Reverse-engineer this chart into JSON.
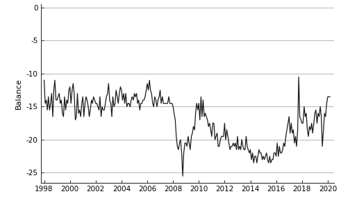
{
  "title": "",
  "ylabel": "Balance",
  "xlim_start": 1997.75,
  "xlim_end": 2020.5,
  "ylim_bottom": -26.5,
  "ylim_top": 0.5,
  "yticks": [
    0,
    -5,
    -10,
    -15,
    -20,
    -25
  ],
  "xticks": [
    1998,
    2000,
    2002,
    2004,
    2006,
    2008,
    2010,
    2012,
    2014,
    2016,
    2018,
    2020
  ],
  "line_color": "#1a1a1a",
  "line_width": 0.9,
  "background_color": "#ffffff",
  "grid_color": "#aaaaaa",
  "series": [
    [
      1998.0,
      -11.0
    ],
    [
      1998.08,
      -14.5
    ],
    [
      1998.17,
      -14.0
    ],
    [
      1998.25,
      -15.5
    ],
    [
      1998.33,
      -13.5
    ],
    [
      1998.42,
      -15.5
    ],
    [
      1998.5,
      -14.5
    ],
    [
      1998.58,
      -13.0
    ],
    [
      1998.67,
      -16.5
    ],
    [
      1998.75,
      -12.5
    ],
    [
      1998.83,
      -11.0
    ],
    [
      1998.92,
      -14.0
    ],
    [
      1999.0,
      -14.0
    ],
    [
      1999.08,
      -13.5
    ],
    [
      1999.17,
      -13.0
    ],
    [
      1999.25,
      -14.5
    ],
    [
      1999.33,
      -14.0
    ],
    [
      1999.42,
      -16.0
    ],
    [
      1999.5,
      -16.5
    ],
    [
      1999.58,
      -13.5
    ],
    [
      1999.67,
      -15.5
    ],
    [
      1999.75,
      -14.0
    ],
    [
      1999.83,
      -14.5
    ],
    [
      1999.92,
      -12.5
    ],
    [
      2000.0,
      -12.0
    ],
    [
      2000.08,
      -14.5
    ],
    [
      2000.17,
      -12.5
    ],
    [
      2000.25,
      -11.5
    ],
    [
      2000.33,
      -13.0
    ],
    [
      2000.42,
      -17.0
    ],
    [
      2000.5,
      -16.5
    ],
    [
      2000.58,
      -13.0
    ],
    [
      2000.67,
      -16.0
    ],
    [
      2000.75,
      -15.5
    ],
    [
      2000.83,
      -16.5
    ],
    [
      2000.92,
      -14.5
    ],
    [
      2001.0,
      -13.5
    ],
    [
      2001.08,
      -16.5
    ],
    [
      2001.17,
      -14.5
    ],
    [
      2001.25,
      -13.5
    ],
    [
      2001.33,
      -14.0
    ],
    [
      2001.42,
      -15.0
    ],
    [
      2001.5,
      -16.5
    ],
    [
      2001.58,
      -15.5
    ],
    [
      2001.67,
      -14.0
    ],
    [
      2001.75,
      -14.5
    ],
    [
      2001.83,
      -13.5
    ],
    [
      2001.92,
      -14.0
    ],
    [
      2002.0,
      -14.5
    ],
    [
      2002.08,
      -14.5
    ],
    [
      2002.17,
      -15.0
    ],
    [
      2002.25,
      -15.5
    ],
    [
      2002.33,
      -13.5
    ],
    [
      2002.42,
      -16.5
    ],
    [
      2002.5,
      -15.0
    ],
    [
      2002.58,
      -15.5
    ],
    [
      2002.67,
      -15.5
    ],
    [
      2002.75,
      -14.5
    ],
    [
      2002.83,
      -13.5
    ],
    [
      2002.92,
      -13.0
    ],
    [
      2003.0,
      -11.5
    ],
    [
      2003.08,
      -14.0
    ],
    [
      2003.17,
      -14.5
    ],
    [
      2003.25,
      -16.5
    ],
    [
      2003.33,
      -13.5
    ],
    [
      2003.42,
      -15.0
    ],
    [
      2003.5,
      -14.5
    ],
    [
      2003.58,
      -12.5
    ],
    [
      2003.67,
      -13.5
    ],
    [
      2003.75,
      -14.5
    ],
    [
      2003.83,
      -13.0
    ],
    [
      2003.92,
      -12.0
    ],
    [
      2004.0,
      -12.5
    ],
    [
      2004.08,
      -14.0
    ],
    [
      2004.17,
      -13.0
    ],
    [
      2004.25,
      -14.5
    ],
    [
      2004.33,
      -13.0
    ],
    [
      2004.42,
      -15.0
    ],
    [
      2004.5,
      -14.5
    ],
    [
      2004.58,
      -14.5
    ],
    [
      2004.67,
      -15.0
    ],
    [
      2004.75,
      -14.0
    ],
    [
      2004.83,
      -13.5
    ],
    [
      2004.92,
      -14.0
    ],
    [
      2005.0,
      -13.0
    ],
    [
      2005.08,
      -13.5
    ],
    [
      2005.17,
      -13.0
    ],
    [
      2005.25,
      -14.5
    ],
    [
      2005.33,
      -14.0
    ],
    [
      2005.42,
      -15.5
    ],
    [
      2005.5,
      -14.5
    ],
    [
      2005.58,
      -14.5
    ],
    [
      2005.67,
      -14.0
    ],
    [
      2005.75,
      -14.0
    ],
    [
      2005.83,
      -13.5
    ],
    [
      2005.92,
      -12.5
    ],
    [
      2006.0,
      -11.5
    ],
    [
      2006.08,
      -12.5
    ],
    [
      2006.17,
      -11.0
    ],
    [
      2006.25,
      -12.5
    ],
    [
      2006.33,
      -13.0
    ],
    [
      2006.42,
      -14.5
    ],
    [
      2006.5,
      -15.0
    ],
    [
      2006.58,
      -13.5
    ],
    [
      2006.67,
      -14.0
    ],
    [
      2006.75,
      -15.0
    ],
    [
      2006.83,
      -14.0
    ],
    [
      2006.92,
      -13.5
    ],
    [
      2007.0,
      -12.5
    ],
    [
      2007.08,
      -14.5
    ],
    [
      2007.17,
      -13.5
    ],
    [
      2007.25,
      -14.5
    ],
    [
      2007.33,
      -14.5
    ],
    [
      2007.42,
      -14.5
    ],
    [
      2007.5,
      -14.5
    ],
    [
      2007.58,
      -14.5
    ],
    [
      2007.67,
      -13.5
    ],
    [
      2007.75,
      -14.5
    ],
    [
      2007.83,
      -14.5
    ],
    [
      2007.92,
      -14.5
    ],
    [
      2008.0,
      -15.0
    ],
    [
      2008.08,
      -16.0
    ],
    [
      2008.17,
      -17.0
    ],
    [
      2008.25,
      -19.5
    ],
    [
      2008.33,
      -21.0
    ],
    [
      2008.42,
      -21.5
    ],
    [
      2008.5,
      -20.5
    ],
    [
      2008.58,
      -20.0
    ],
    [
      2008.67,
      -22.0
    ],
    [
      2008.75,
      -25.5
    ],
    [
      2008.83,
      -22.0
    ],
    [
      2008.92,
      -20.5
    ],
    [
      2009.0,
      -20.5
    ],
    [
      2009.08,
      -21.0
    ],
    [
      2009.17,
      -19.5
    ],
    [
      2009.25,
      -20.5
    ],
    [
      2009.33,
      -21.5
    ],
    [
      2009.42,
      -19.5
    ],
    [
      2009.5,
      -19.0
    ],
    [
      2009.58,
      -18.0
    ],
    [
      2009.67,
      -18.5
    ],
    [
      2009.75,
      -16.0
    ],
    [
      2009.83,
      -14.5
    ],
    [
      2009.92,
      -15.5
    ],
    [
      2010.0,
      -14.5
    ],
    [
      2010.08,
      -17.0
    ],
    [
      2010.17,
      -13.5
    ],
    [
      2010.25,
      -16.5
    ],
    [
      2010.33,
      -14.0
    ],
    [
      2010.42,
      -16.5
    ],
    [
      2010.5,
      -16.0
    ],
    [
      2010.58,
      -16.5
    ],
    [
      2010.67,
      -17.0
    ],
    [
      2010.75,
      -18.0
    ],
    [
      2010.83,
      -17.5
    ],
    [
      2010.92,
      -18.5
    ],
    [
      2011.0,
      -19.5
    ],
    [
      2011.08,
      -17.5
    ],
    [
      2011.17,
      -17.5
    ],
    [
      2011.25,
      -20.0
    ],
    [
      2011.33,
      -19.5
    ],
    [
      2011.42,
      -19.0
    ],
    [
      2011.5,
      -21.0
    ],
    [
      2011.58,
      -21.0
    ],
    [
      2011.67,
      -20.0
    ],
    [
      2011.75,
      -19.5
    ],
    [
      2011.83,
      -19.5
    ],
    [
      2011.92,
      -19.5
    ],
    [
      2012.0,
      -17.5
    ],
    [
      2012.08,
      -20.0
    ],
    [
      2012.17,
      -18.5
    ],
    [
      2012.25,
      -19.5
    ],
    [
      2012.33,
      -20.5
    ],
    [
      2012.42,
      -21.5
    ],
    [
      2012.5,
      -21.0
    ],
    [
      2012.58,
      -21.0
    ],
    [
      2012.67,
      -20.5
    ],
    [
      2012.75,
      -21.0
    ],
    [
      2012.83,
      -20.5
    ],
    [
      2012.92,
      -21.5
    ],
    [
      2013.0,
      -19.5
    ],
    [
      2013.08,
      -21.5
    ],
    [
      2013.17,
      -21.0
    ],
    [
      2013.25,
      -21.5
    ],
    [
      2013.33,
      -20.0
    ],
    [
      2013.42,
      -21.0
    ],
    [
      2013.5,
      -21.5
    ],
    [
      2013.58,
      -21.5
    ],
    [
      2013.67,
      -19.5
    ],
    [
      2013.75,
      -21.0
    ],
    [
      2013.83,
      -21.5
    ],
    [
      2013.92,
      -22.0
    ],
    [
      2014.0,
      -21.5
    ],
    [
      2014.08,
      -23.0
    ],
    [
      2014.17,
      -22.0
    ],
    [
      2014.25,
      -23.5
    ],
    [
      2014.33,
      -22.5
    ],
    [
      2014.42,
      -22.5
    ],
    [
      2014.5,
      -23.5
    ],
    [
      2014.58,
      -22.5
    ],
    [
      2014.67,
      -21.5
    ],
    [
      2014.75,
      -22.0
    ],
    [
      2014.83,
      -22.0
    ],
    [
      2014.92,
      -23.0
    ],
    [
      2015.0,
      -22.5
    ],
    [
      2015.08,
      -23.0
    ],
    [
      2015.17,
      -22.5
    ],
    [
      2015.25,
      -22.0
    ],
    [
      2015.33,
      -23.0
    ],
    [
      2015.42,
      -23.5
    ],
    [
      2015.5,
      -22.5
    ],
    [
      2015.58,
      -23.5
    ],
    [
      2015.67,
      -23.0
    ],
    [
      2015.75,
      -23.0
    ],
    [
      2015.83,
      -22.0
    ],
    [
      2015.92,
      -22.0
    ],
    [
      2016.0,
      -22.5
    ],
    [
      2016.08,
      -20.5
    ],
    [
      2016.17,
      -22.5
    ],
    [
      2016.25,
      -21.0
    ],
    [
      2016.33,
      -22.0
    ],
    [
      2016.42,
      -22.0
    ],
    [
      2016.5,
      -21.5
    ],
    [
      2016.58,
      -20.5
    ],
    [
      2016.67,
      -21.0
    ],
    [
      2016.75,
      -19.5
    ],
    [
      2016.83,
      -18.5
    ],
    [
      2016.92,
      -17.5
    ],
    [
      2017.0,
      -16.5
    ],
    [
      2017.08,
      -19.0
    ],
    [
      2017.17,
      -17.5
    ],
    [
      2017.25,
      -19.0
    ],
    [
      2017.33,
      -18.5
    ],
    [
      2017.42,
      -20.5
    ],
    [
      2017.5,
      -19.5
    ],
    [
      2017.58,
      -21.0
    ],
    [
      2017.67,
      -18.5
    ],
    [
      2017.75,
      -10.5
    ],
    [
      2017.83,
      -16.5
    ],
    [
      2017.92,
      -17.0
    ],
    [
      2018.0,
      -17.5
    ],
    [
      2018.08,
      -17.5
    ],
    [
      2018.17,
      -15.0
    ],
    [
      2018.25,
      -16.5
    ],
    [
      2018.33,
      -16.0
    ],
    [
      2018.42,
      -18.5
    ],
    [
      2018.5,
      -19.5
    ],
    [
      2018.58,
      -18.0
    ],
    [
      2018.67,
      -18.5
    ],
    [
      2018.75,
      -17.5
    ],
    [
      2018.83,
      -19.0
    ],
    [
      2018.92,
      -17.5
    ],
    [
      2019.0,
      -16.0
    ],
    [
      2019.08,
      -15.5
    ],
    [
      2019.17,
      -17.5
    ],
    [
      2019.25,
      -16.0
    ],
    [
      2019.33,
      -16.5
    ],
    [
      2019.42,
      -15.0
    ],
    [
      2019.5,
      -16.5
    ],
    [
      2019.58,
      -21.0
    ],
    [
      2019.67,
      -18.5
    ],
    [
      2019.75,
      -16.0
    ],
    [
      2019.83,
      -16.5
    ],
    [
      2019.92,
      -14.5
    ],
    [
      2020.0,
      -13.5
    ],
    [
      2020.08,
      -13.5
    ],
    [
      2020.17,
      -13.5
    ]
  ]
}
